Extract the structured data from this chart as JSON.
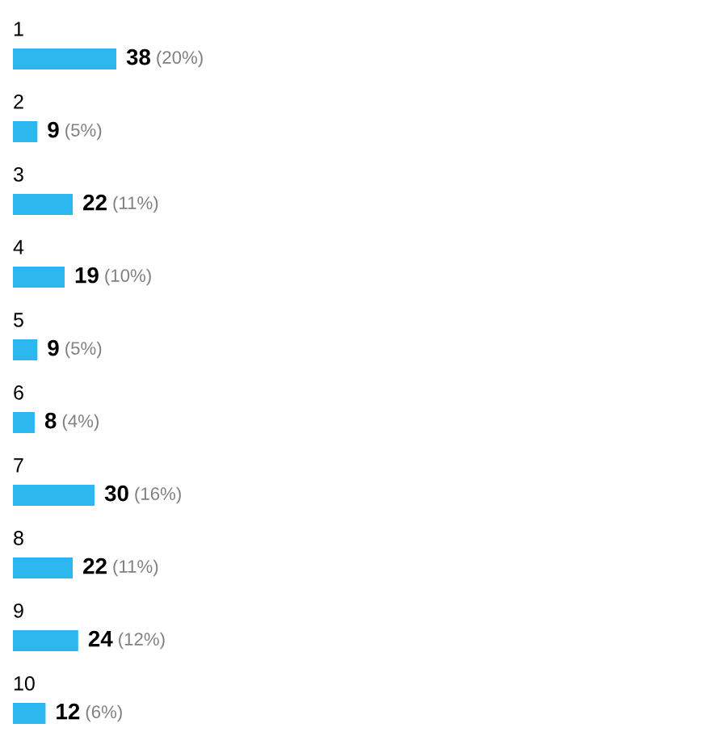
{
  "chart_data": {
    "type": "bar",
    "orientation": "horizontal",
    "categories": [
      "1",
      "2",
      "3",
      "4",
      "5",
      "6",
      "7",
      "8",
      "9",
      "10"
    ],
    "values": [
      38,
      9,
      22,
      19,
      9,
      8,
      30,
      22,
      24,
      12
    ],
    "color": "#2cb8ee",
    "value_labels": [
      "38 (20%)",
      "9 (5%)",
      "22 (11%)",
      "19 (10%)",
      "9 (5%)",
      "8 (4%)",
      "30 (16%)",
      "22 (11%)",
      "24 (12%)",
      "12 (6%)"
    ],
    "tick_labels": "y"
  }
}
